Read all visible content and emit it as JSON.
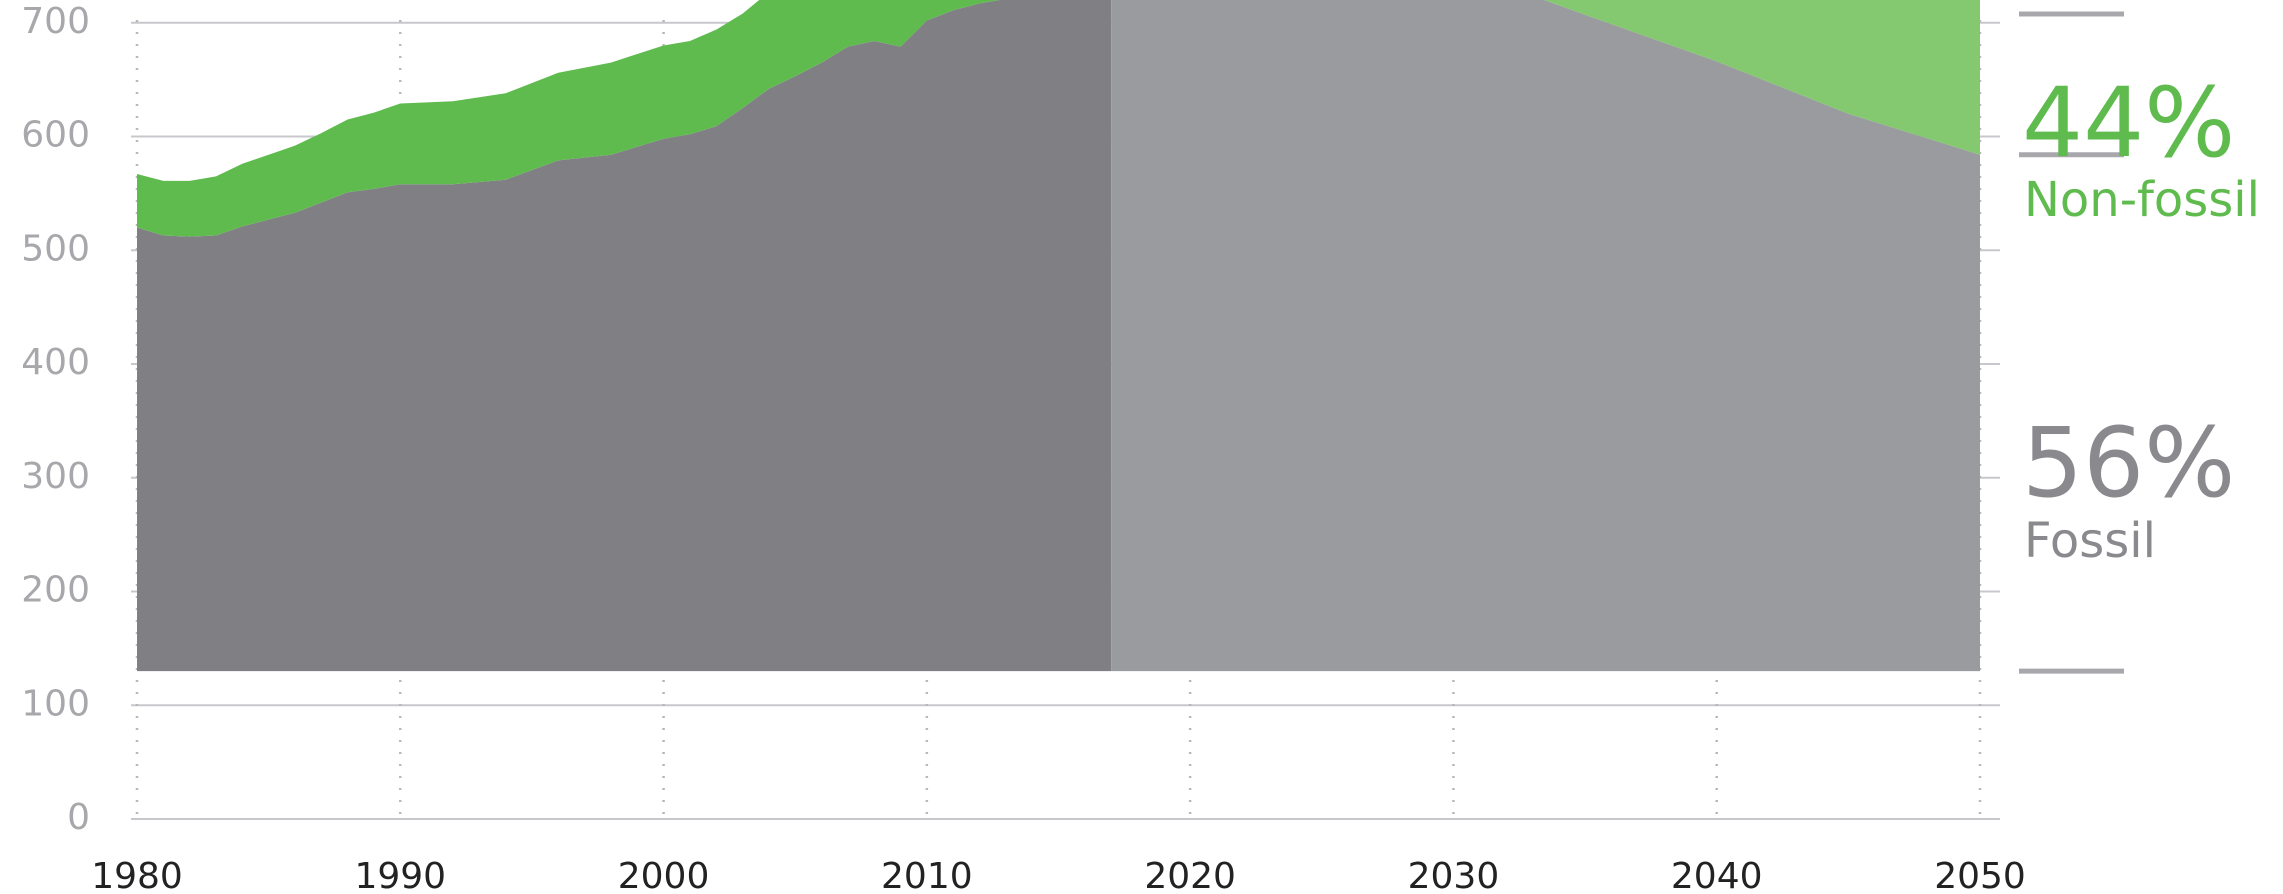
{
  "chart_data": {
    "type": "stacked_area",
    "x": [
      1980,
      1981,
      1982,
      1983,
      1984,
      1985,
      1986,
      1987,
      1988,
      1989,
      1990,
      1992,
      1994,
      1996,
      1998,
      2000,
      2001,
      2002,
      2003,
      2004,
      2005,
      2006,
      2007,
      2008,
      2009,
      2010,
      2011,
      2012,
      2013,
      2014,
      2015,
      2016,
      2017,
      2020,
      2025,
      2030,
      2035,
      2040,
      2045,
      2050
    ],
    "series": [
      {
        "name": "Fossil",
        "color": "#808084",
        "projection_color": "#9a9b9f",
        "values": [
          390,
          383,
          382,
          383,
          391,
          397,
          403,
          412,
          421,
          424,
          428,
          428,
          432,
          449,
          454,
          468,
          472,
          479,
          495,
          512,
          523,
          535,
          549,
          554,
          549,
          572,
          581,
          587,
          591,
          596,
          599,
          603,
          606,
          618,
          629,
          619,
          577,
          536,
          490,
          454
        ]
      },
      {
        "name": "Non-fossil",
        "color": "#5fbb4e",
        "projection_color": "#84c870",
        "values": [
          47,
          48,
          49,
          52,
          55,
          57,
          59,
          61,
          64,
          67,
          71,
          73,
          76,
          77,
          81,
          82,
          82,
          85,
          83,
          85,
          87,
          89,
          89,
          91,
          93,
          97,
          96,
          99,
          103,
          104,
          102,
          106,
          112,
          117,
          116,
          131,
          173,
          209,
          240,
          255
        ]
      }
    ],
    "baseline": 130,
    "projection_start": 2017,
    "xlim": [
      1980,
      2050
    ],
    "xticks": [
      1980,
      1990,
      2000,
      2010,
      2020,
      2030,
      2040,
      2050
    ],
    "ylim": [
      0,
      720
    ],
    "yticks": [
      0,
      100,
      200,
      300,
      400,
      500,
      600,
      700
    ],
    "grid": true,
    "annotations": [
      {
        "text": "44%",
        "label": "Non-fossil",
        "color": "#5fbb4e"
      },
      {
        "text": "56%",
        "label": "Fossil",
        "color": "#8a8a8e"
      }
    ]
  }
}
